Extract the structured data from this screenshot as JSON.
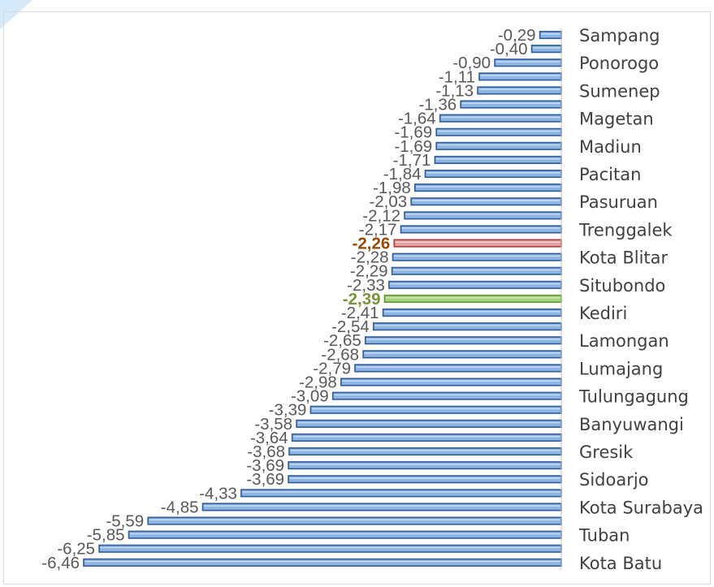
{
  "chart_data": {
    "type": "bar",
    "orientation": "horizontal",
    "title": "",
    "xlabel": "",
    "ylabel": "",
    "xlim": [
      -6.46,
      0
    ],
    "grid": false,
    "legend": "none",
    "categories_shown": [
      "Sampang",
      "Ponorogo",
      "Sumenep",
      "Magetan",
      "Madiun",
      "Pacitan",
      "Pasuruan",
      "Trenggalek",
      "Kota Blitar",
      "Situbondo",
      "Kediri",
      "Lamongan",
      "Lumajang",
      "Tulungagung",
      "Banyuwangi",
      "Gresik",
      "Sidoarjo",
      "Kota Surabaya",
      "Tuban",
      "Kota Batu"
    ],
    "bars": [
      {
        "label": "Sampang",
        "value": -0.29,
        "value_text": "-0,29",
        "style": "normal"
      },
      {
        "label": "",
        "value": -0.4,
        "value_text": "-0,40",
        "style": "normal"
      },
      {
        "label": "Ponorogo",
        "value": -0.9,
        "value_text": "-0,90",
        "style": "normal"
      },
      {
        "label": "",
        "value": -1.11,
        "value_text": "-1,11",
        "style": "normal"
      },
      {
        "label": "Sumenep",
        "value": -1.13,
        "value_text": "-1,13",
        "style": "normal"
      },
      {
        "label": "",
        "value": -1.36,
        "value_text": "-1,36",
        "style": "normal"
      },
      {
        "label": "Magetan",
        "value": -1.64,
        "value_text": "-1,64",
        "style": "normal"
      },
      {
        "label": "",
        "value": -1.69,
        "value_text": "-1,69",
        "style": "normal"
      },
      {
        "label": "Madiun",
        "value": -1.69,
        "value_text": "-1,69",
        "style": "normal"
      },
      {
        "label": "",
        "value": -1.71,
        "value_text": "-1,71",
        "style": "normal"
      },
      {
        "label": "Pacitan",
        "value": -1.84,
        "value_text": "-1,84",
        "style": "normal"
      },
      {
        "label": "",
        "value": -1.98,
        "value_text": "-1,98",
        "style": "normal"
      },
      {
        "label": "Pasuruan",
        "value": -2.03,
        "value_text": "-2,03",
        "style": "normal"
      },
      {
        "label": "",
        "value": -2.12,
        "value_text": "-2,12",
        "style": "normal"
      },
      {
        "label": "Trenggalek",
        "value": -2.17,
        "value_text": "-2,17",
        "style": "normal"
      },
      {
        "label": "",
        "value": -2.26,
        "value_text": "-2,26",
        "style": "red"
      },
      {
        "label": "Kota Blitar",
        "value": -2.28,
        "value_text": "-2,28",
        "style": "normal"
      },
      {
        "label": "",
        "value": -2.29,
        "value_text": "-2,29",
        "style": "normal"
      },
      {
        "label": "Situbondo",
        "value": -2.33,
        "value_text": "-2,33",
        "style": "normal"
      },
      {
        "label": "",
        "value": -2.39,
        "value_text": "-2,39",
        "style": "green"
      },
      {
        "label": "Kediri",
        "value": -2.41,
        "value_text": "-2,41",
        "style": "normal"
      },
      {
        "label": "",
        "value": -2.54,
        "value_text": "-2,54",
        "style": "normal"
      },
      {
        "label": "Lamongan",
        "value": -2.65,
        "value_text": "-2,65",
        "style": "normal"
      },
      {
        "label": "",
        "value": -2.68,
        "value_text": "-2,68",
        "style": "normal"
      },
      {
        "label": "Lumajang",
        "value": -2.79,
        "value_text": "-2,79",
        "style": "normal"
      },
      {
        "label": "",
        "value": -2.98,
        "value_text": "-2,98",
        "style": "normal"
      },
      {
        "label": "Tulungagung",
        "value": -3.09,
        "value_text": "-3,09",
        "style": "normal"
      },
      {
        "label": "",
        "value": -3.39,
        "value_text": "-3,39",
        "style": "normal"
      },
      {
        "label": "Banyuwangi",
        "value": -3.58,
        "value_text": "-3,58",
        "style": "normal"
      },
      {
        "label": "",
        "value": -3.64,
        "value_text": "-3,64",
        "style": "normal"
      },
      {
        "label": "Gresik",
        "value": -3.68,
        "value_text": "-3,68",
        "style": "normal"
      },
      {
        "label": "",
        "value": -3.69,
        "value_text": "-3,69",
        "style": "normal"
      },
      {
        "label": "Sidoarjo",
        "value": -3.69,
        "value_text": "-3,69",
        "style": "normal"
      },
      {
        "label": "",
        "value": -4.33,
        "value_text": "-4,33",
        "style": "normal"
      },
      {
        "label": "Kota Surabaya",
        "value": -4.85,
        "value_text": "-4,85",
        "style": "normal"
      },
      {
        "label": "",
        "value": -5.59,
        "value_text": "-5,59",
        "style": "normal"
      },
      {
        "label": "Tuban",
        "value": -5.85,
        "value_text": "-5,85",
        "style": "normal"
      },
      {
        "label": "",
        "value": -6.25,
        "value_text": "-6,25",
        "style": "normal"
      },
      {
        "label": "Kota Batu",
        "value": -6.46,
        "value_text": "-6,46",
        "style": "normal"
      }
    ],
    "colors": {
      "bar_normal": "#8db4e2",
      "bar_normal_edge": "#2e5b9a",
      "bar_red": "#e6a0a0",
      "bar_red_edge": "#b03a3a",
      "bar_green": "#a8cf7c",
      "bar_green_edge": "#5f9a2e",
      "value_label": "#595959",
      "value_label_red": "#984806",
      "value_label_green": "#77933c",
      "category_label": "#404040",
      "axis": "#bfbfbf",
      "border": "#d9d9d9"
    }
  }
}
